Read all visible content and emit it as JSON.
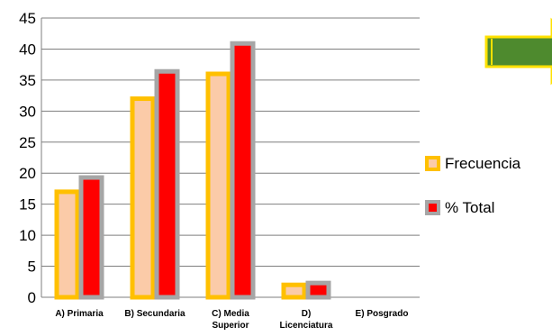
{
  "chart_data": {
    "type": "bar",
    "categories": [
      [
        "A) Primaria"
      ],
      [
        "B) Secundaria"
      ],
      [
        "C) Media",
        "Superior"
      ],
      [
        "D)",
        "Licenciatura"
      ],
      [
        "E) Posgrado"
      ]
    ],
    "series": [
      {
        "name": "Frecuencia",
        "values": [
          17,
          32,
          36,
          2,
          0
        ],
        "fill": "#FBCBA8",
        "stroke": "#FFC000"
      },
      {
        "name": "% Total",
        "values": [
          19.3,
          36.4,
          40.9,
          2.3,
          0
        ],
        "fill": "#FF0000",
        "stroke": "#A6A6A6"
      }
    ],
    "ylim": [
      0,
      45
    ],
    "yticks": [
      0,
      5,
      10,
      15,
      20,
      25,
      30,
      35,
      40,
      45
    ],
    "grid": true,
    "legend_position": "right",
    "colors": {
      "gridline": "#7F7F7F",
      "arrow_fill": "#4E8A2E",
      "arrow_stroke": "#FFE100"
    },
    "decorations": [
      {
        "icon": "right-arrow-icon"
      }
    ]
  }
}
